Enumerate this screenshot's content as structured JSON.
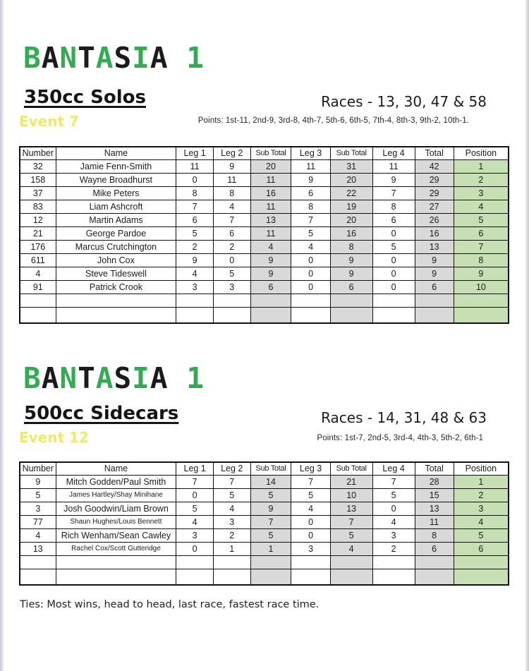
{
  "colors": {
    "title_green": "#31ac50",
    "title_black": "#1b1b1b",
    "event_yellow": "#efe96b",
    "subtotal_gray": "#d9d9d9",
    "position_green": "#c6e0b4"
  },
  "sections": [
    {
      "title": "BANTASIA 1",
      "class_heading": "350cc Solos",
      "races": "Races - 13, 30, 47 & 58",
      "event_label": "Event 7",
      "points": "Points: 1st-11, 2nd-9, 3rd-8, 4th-7, 5th-6, 6th-5, 7th-4, 8th-3, 9th-2, 10th-1.",
      "table": {
        "columns": [
          "Number",
          "Name",
          "Leg 1",
          "Leg 2",
          "Sub Total",
          "Leg 3",
          "Sub Total",
          "Leg 4",
          "Total",
          "Position"
        ],
        "rows": [
          [
            "32",
            "Jamie Fenn-Smith",
            "11",
            "9",
            "20",
            "11",
            "31",
            "11",
            "42",
            "1"
          ],
          [
            "158",
            "Wayne Broadhurst",
            "0",
            "11",
            "11",
            "9",
            "20",
            "9",
            "29",
            "2"
          ],
          [
            "37",
            "Mike Peters",
            "8",
            "8",
            "16",
            "6",
            "22",
            "7",
            "29",
            "3"
          ],
          [
            "83",
            "Liam Ashcroft",
            "7",
            "4",
            "11",
            "8",
            "19",
            "8",
            "27",
            "4"
          ],
          [
            "12",
            "Martin Adams",
            "6",
            "7",
            "13",
            "7",
            "20",
            "6",
            "26",
            "5"
          ],
          [
            "21",
            "George Pardoe",
            "5",
            "6",
            "11",
            "5",
            "16",
            "0",
            "16",
            "6"
          ],
          [
            "176",
            "Marcus Crutchington",
            "2",
            "2",
            "4",
            "4",
            "8",
            "5",
            "13",
            "7"
          ],
          [
            "611",
            "John Cox",
            "9",
            "0",
            "9",
            "0",
            "9",
            "0",
            "9",
            "8"
          ],
          [
            "4",
            "Steve Tideswell",
            "4",
            "5",
            "9",
            "0",
            "9",
            "0",
            "9",
            "9"
          ],
          [
            "91",
            "Patrick Crook",
            "3",
            "3",
            "6",
            "0",
            "6",
            "0",
            "6",
            "10"
          ]
        ],
        "empty_rows": 2
      }
    },
    {
      "title": "BANTASIA 1",
      "class_heading": "500cc Sidecars",
      "races": "Races - 14, 31, 48 & 63",
      "event_label": "Event 12",
      "points": "Points: 1st-7, 2nd-5, 3rd-4, 4th-3, 5th-2, 6th-1",
      "table": {
        "columns": [
          "Number",
          "Name",
          "Leg 1",
          "Leg 2",
          "Sub Total",
          "Leg 3",
          "Sub Total",
          "Leg 4",
          "Total",
          "Position"
        ],
        "rows": [
          [
            "9",
            "Mitch Godden/Paul Smith",
            "7",
            "7",
            "14",
            "7",
            "21",
            "7",
            "28",
            "1"
          ],
          [
            "5",
            "James Hartley/Shay Minihane",
            "0",
            "5",
            "5",
            "5",
            "10",
            "5",
            "15",
            "2"
          ],
          [
            "3",
            "Josh Goodwin/Liam Brown",
            "5",
            "4",
            "9",
            "4",
            "13",
            "0",
            "13",
            "3"
          ],
          [
            "77",
            "Shaun Hughes/Louis Bennett",
            "4",
            "3",
            "7",
            "0",
            "7",
            "4",
            "11",
            "4"
          ],
          [
            "4",
            "Rich Wenham/Sean Cawley",
            "3",
            "2",
            "5",
            "0",
            "5",
            "3",
            "8",
            "5"
          ],
          [
            "13",
            "Rachel Cox/Scott Gutteridge",
            "0",
            "1",
            "1",
            "3",
            "4",
            "2",
            "6",
            "6"
          ]
        ],
        "empty_rows": 2
      }
    }
  ],
  "footer": {
    "ties": "Ties: Most wins, head to head, last race, fastest race time."
  }
}
